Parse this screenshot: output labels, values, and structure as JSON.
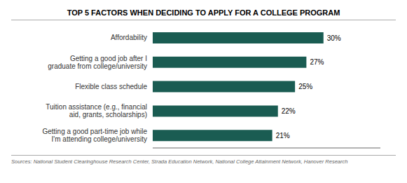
{
  "chart_data": {
    "type": "bar",
    "title": "TOP 5 FACTORS WHEN DECIDING TO APPLY FOR A COLLEGE PROGRAM",
    "orientation": "horizontal",
    "categories": [
      "Getting a good part-time job while\nI'm attending college/university",
      "Tuition assistance (e.g., financial\naid, grants, scholarships)",
      "Flexible class schedule",
      "Getting a good job after I\ngraduate from college/university",
      "Affordability"
    ],
    "values": [
      21,
      22,
      25,
      27,
      30
    ],
    "value_labels": [
      "21%",
      "22%",
      "25%",
      "27%",
      "30%"
    ],
    "data_labels": true,
    "color": "#1a5c52",
    "xlim": [
      0,
      40
    ],
    "grid": false,
    "tick_labels": "y",
    "annotations": [
      "Sources: National Student Clearinghouse Research Center, Strada Education Network, National College Attainment Network, Hanover Research"
    ]
  }
}
